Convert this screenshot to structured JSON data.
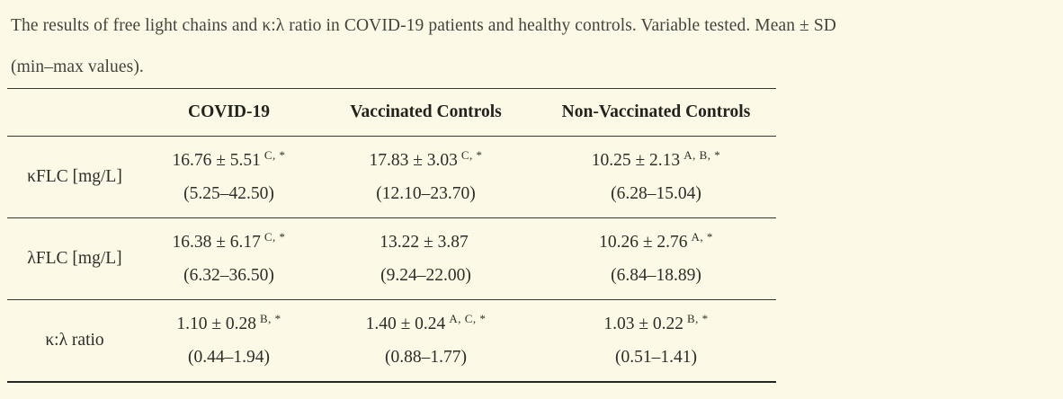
{
  "caption": {
    "line1": "The results of free light chains and κ:λ ratio in COVID-19 patients and healthy controls. Variable tested. Mean ± SD",
    "line2": "(min–max values)."
  },
  "table": {
    "headers": [
      "",
      "COVID-19",
      "Vaccinated Controls",
      "Non-Vaccinated Controls"
    ],
    "rows": [
      {
        "label": "κFLC [mg/L]",
        "cells": [
          {
            "value": "16.76 ± 5.51",
            "sup": "C, *",
            "range": "(5.25–42.50)"
          },
          {
            "value": "17.83 ± 3.03",
            "sup": "C, *",
            "range": "(12.10–23.70)"
          },
          {
            "value": "10.25 ± 2.13",
            "sup": "A, B, *",
            "range": "(6.28–15.04)"
          }
        ]
      },
      {
        "label": "λFLC [mg/L]",
        "cells": [
          {
            "value": "16.38 ± 6.17",
            "sup": "C, *",
            "range": "(6.32–36.50)"
          },
          {
            "value": "13.22 ± 3.87",
            "sup": "",
            "range": "(9.24–22.00)"
          },
          {
            "value": "10.26 ± 2.76",
            "sup": "A, *",
            "range": "(6.84–18.89)"
          }
        ]
      },
      {
        "label": "κ:λ ratio",
        "cells": [
          {
            "value": "1.10 ± 0.28",
            "sup": "B, *",
            "range": "(0.44–1.94)"
          },
          {
            "value": "1.40 ± 0.24",
            "sup": "A, C, *",
            "range": "(0.88–1.77)"
          },
          {
            "value": "1.03 ± 0.22",
            "sup": "B, *",
            "range": "(0.51–1.41)"
          }
        ]
      }
    ]
  },
  "colors": {
    "background": "#fcfae7",
    "text": "#2e2c26",
    "rule": "#38372f"
  }
}
